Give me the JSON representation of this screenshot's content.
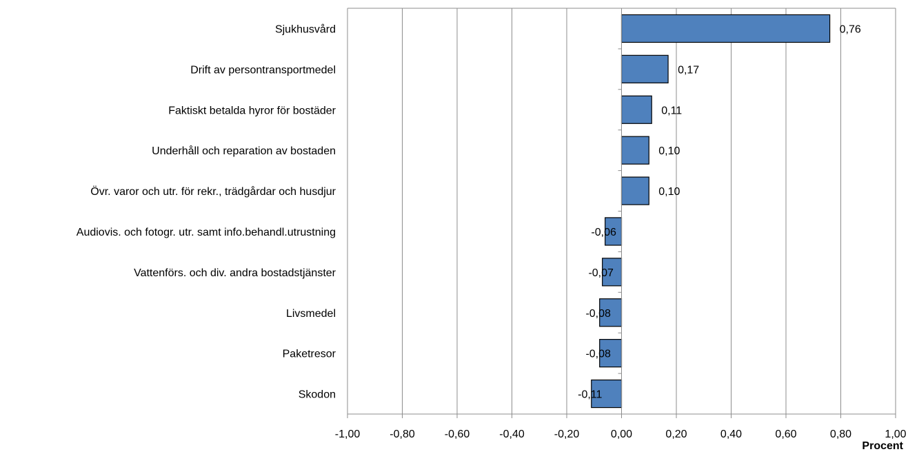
{
  "chart_data": {
    "type": "bar",
    "orientation": "horizontal",
    "categories": [
      "Sjukhusvård",
      "Drift av persontransportmedel",
      "Faktiskt betalda hyror för bostäder",
      "Underhåll och reparation av bostaden",
      "Övr. varor och utr. för rekr., trädgårdar och husdjur",
      "Audiovis. och fotogr. utr. samt info.behandl.utrustning",
      "Vattenförs. och div. andra bostadstjänster",
      "Livsmedel",
      "Paketresor",
      "Skodon"
    ],
    "values": [
      0.76,
      0.17,
      0.11,
      0.1,
      0.1,
      -0.06,
      -0.07,
      -0.08,
      -0.08,
      -0.11
    ],
    "value_labels": [
      "0,76",
      "0,17",
      "0,11",
      "0,10",
      "0,10",
      "-0,06",
      "-0,07",
      "-0,08",
      "-0,08",
      "-0,11"
    ],
    "xlim": [
      -1.0,
      1.0
    ],
    "xticks": [
      -1.0,
      -0.8,
      -0.6,
      -0.4,
      -0.2,
      0.0,
      0.2,
      0.4,
      0.6,
      0.8,
      1.0
    ],
    "xtick_labels": [
      "-1,00",
      "-0,80",
      "-0,60",
      "-0,40",
      "-0,20",
      "0,00",
      "0,20",
      "0,40",
      "0,60",
      "0,80",
      "1,00"
    ],
    "xlabel": "Procent",
    "title": "",
    "grid": "vertical",
    "legend": "none",
    "bar_color": "#4F81BD",
    "bar_border_color": "#000000",
    "grid_color": "#8c8c8c"
  }
}
